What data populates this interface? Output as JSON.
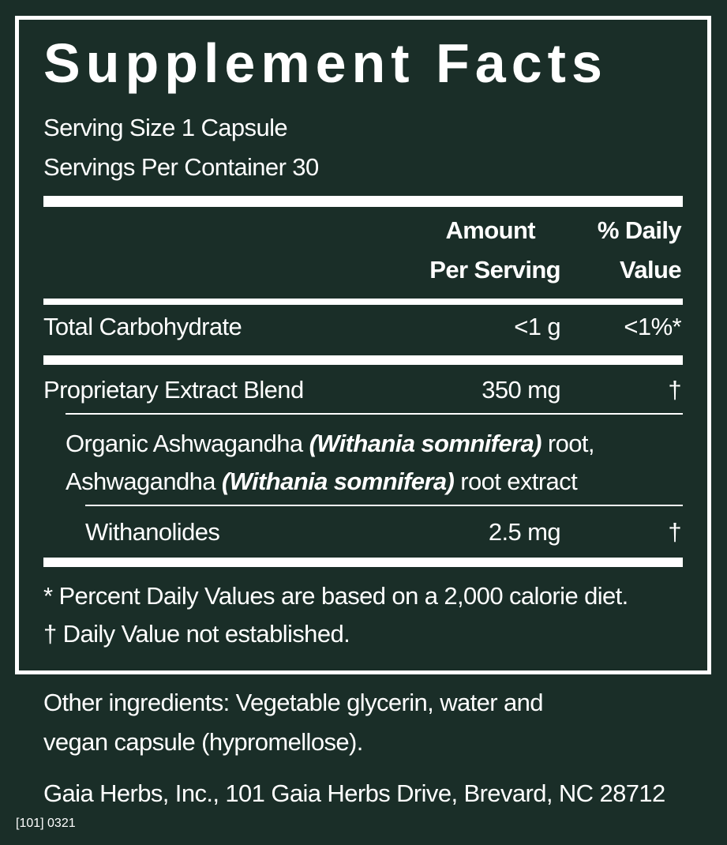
{
  "title": "Supplement Facts",
  "serving_size": "Serving Size 1 Capsule",
  "servings_per_container": "Servings Per Container 30",
  "headers": {
    "amount_line1": "Amount",
    "amount_line2": "Per Serving",
    "dv_line1": "% Daily",
    "dv_line2": "Value"
  },
  "rows": [
    {
      "name": "Total Carbohydrate",
      "amount": "<1 g",
      "dv": "<1%*"
    },
    {
      "name": "Proprietary Extract Blend",
      "amount": "350 mg",
      "dv": "†"
    },
    {
      "name": "Withanolides",
      "amount": "2.5 mg",
      "dv": "†"
    }
  ],
  "blend": {
    "line1_a": "Organic Ashwagandha ",
    "line1_b": "(Withania somnifera)",
    "line1_c": " root,",
    "line2_a": "Ashwagandha ",
    "line2_b": "(Withania somnifera)",
    "line2_c": " root extract"
  },
  "footnotes": [
    "*  Percent Daily Values are based on a 2,000 calorie diet.",
    "† Daily Value not established."
  ],
  "other_ingredients": [
    "Other ingredients: Vegetable glycerin, water and",
    "vegan capsule (hypromellose)."
  ],
  "manufacturer": "Gaia Herbs, Inc., 101 Gaia Herbs Drive, Brevard, NC 28712",
  "code": "[101] 0321",
  "colors": {
    "background": "#1a2e28",
    "text": "#ffffff"
  }
}
